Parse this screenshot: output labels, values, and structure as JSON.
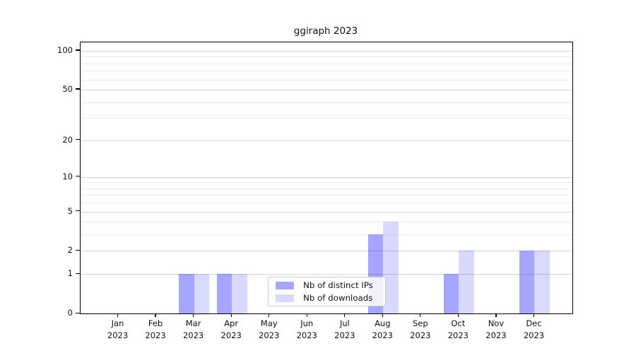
{
  "title": "ggiraph 2023",
  "chart_data": {
    "type": "bar",
    "title": "ggiraph 2023",
    "categories": [
      "Jan 2023",
      "Feb 2023",
      "Mar 2023",
      "Apr 2023",
      "May 2023",
      "Jun 2023",
      "Jul 2023",
      "Aug 2023",
      "Sep 2023",
      "Oct 2023",
      "Nov 2023",
      "Dec 2023"
    ],
    "series": [
      {
        "name": "Nb of distinct IPs",
        "color": "rgba(0,0,255,0.35)",
        "values": [
          0,
          0,
          1,
          1,
          0,
          0,
          0,
          3,
          0,
          1,
          0,
          2
        ]
      },
      {
        "name": "Nb of downloads",
        "color": "rgba(0,0,255,0.15)",
        "values": [
          0,
          0,
          1,
          1,
          0,
          0,
          0,
          4,
          0,
          2,
          0,
          2
        ]
      }
    ],
    "xlabel": "",
    "ylabel": "",
    "yscale": "log1p",
    "ylim": [
      0,
      116
    ],
    "y_major_ticks": [
      0,
      1,
      2,
      5,
      10,
      20,
      50,
      100
    ],
    "y_minor_gridlines": [
      3,
      4,
      6,
      7,
      8,
      9,
      30,
      40,
      60,
      70,
      80,
      90
    ],
    "grid": "horizontal",
    "legend_position": "inside-bottom-center",
    "bar_layout": "dodged"
  },
  "legend": {
    "items": [
      {
        "label": "Nb of distinct IPs"
      },
      {
        "label": "Nb of downloads"
      }
    ]
  },
  "colors": {
    "bar_dark": "rgba(0,0,255,0.35)",
    "bar_light": "rgba(0,0,255,0.15)",
    "grid_major": "#d4d4d4",
    "grid_minor": "#ececec",
    "frame": "#000000",
    "background": "#ffffff"
  }
}
